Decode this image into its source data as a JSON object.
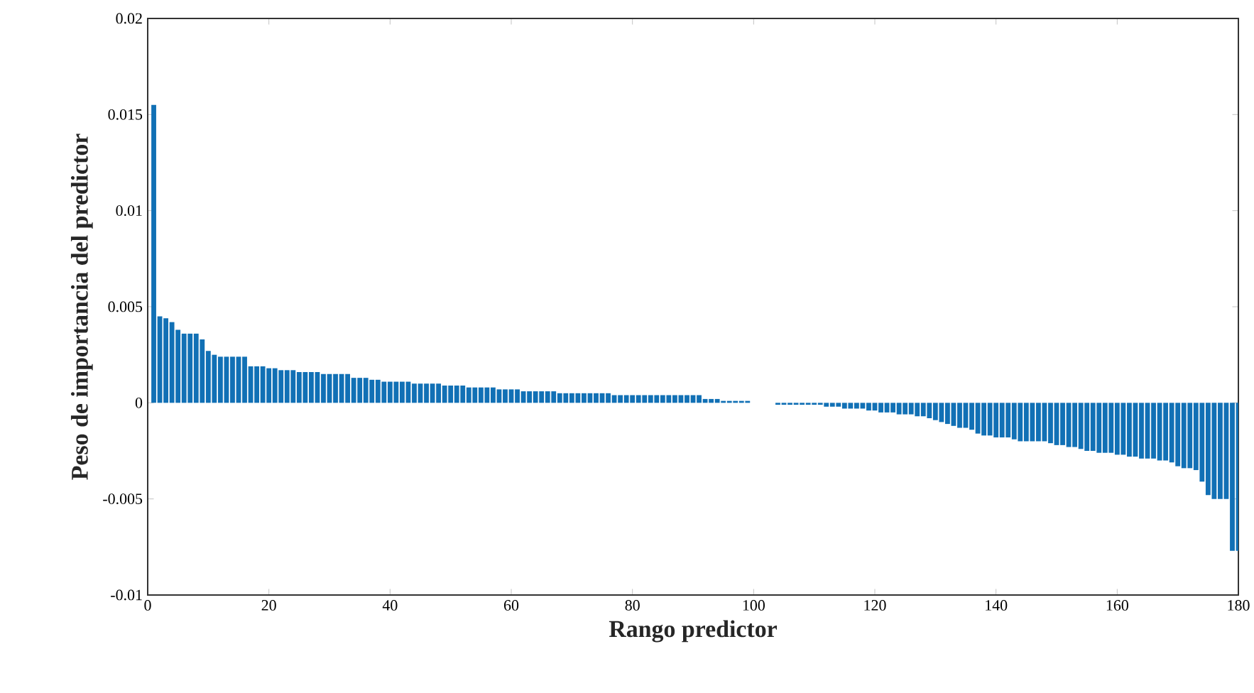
{
  "chart_data": {
    "type": "bar",
    "xlabel": "Rango predictor",
    "ylabel": "Peso de importancia del predictor",
    "color": "#1170b5",
    "x": [
      1,
      2,
      3,
      4,
      5,
      6,
      7,
      8,
      9,
      10,
      11,
      12,
      13,
      14,
      15,
      16,
      17,
      18,
      19,
      20,
      21,
      22,
      23,
      24,
      25,
      26,
      27,
      28,
      29,
      30,
      31,
      32,
      33,
      34,
      35,
      36,
      37,
      38,
      39,
      40,
      41,
      42,
      43,
      44,
      45,
      46,
      47,
      48,
      49,
      50,
      51,
      52,
      53,
      54,
      55,
      56,
      57,
      58,
      59,
      60,
      61,
      62,
      63,
      64,
      65,
      66,
      67,
      68,
      69,
      70,
      71,
      72,
      73,
      74,
      75,
      76,
      77,
      78,
      79,
      80,
      81,
      82,
      83,
      84,
      85,
      86,
      87,
      88,
      89,
      90,
      91,
      92,
      93,
      94,
      95,
      96,
      97,
      98,
      99,
      100,
      101,
      102,
      103,
      104,
      105,
      106,
      107,
      108,
      109,
      110,
      111,
      112,
      113,
      114,
      115,
      116,
      117,
      118,
      119,
      120,
      121,
      122,
      123,
      124,
      125,
      126,
      127,
      128,
      129,
      130,
      131,
      132,
      133,
      134,
      135,
      136,
      137,
      138,
      139,
      140,
      141,
      142,
      143,
      144,
      145,
      146,
      147,
      148,
      149,
      150,
      151,
      152,
      153,
      154,
      155,
      156,
      157,
      158,
      159,
      160,
      161,
      162,
      163,
      164,
      165,
      166,
      167,
      168,
      169,
      170,
      171,
      172,
      173,
      174,
      175,
      176,
      177,
      178,
      179,
      180
    ],
    "values": [
      0.0155,
      0.0045,
      0.0044,
      0.0042,
      0.0038,
      0.0036,
      0.0036,
      0.0036,
      0.0033,
      0.0027,
      0.0025,
      0.0024,
      0.0024,
      0.0024,
      0.0024,
      0.0024,
      0.0019,
      0.0019,
      0.0019,
      0.0018,
      0.0018,
      0.0017,
      0.0017,
      0.0017,
      0.0016,
      0.0016,
      0.0016,
      0.0016,
      0.0015,
      0.0015,
      0.0015,
      0.0015,
      0.0015,
      0.0013,
      0.0013,
      0.0013,
      0.0012,
      0.0012,
      0.0011,
      0.0011,
      0.0011,
      0.0011,
      0.0011,
      0.001,
      0.001,
      0.001,
      0.001,
      0.001,
      0.0009,
      0.0009,
      0.0009,
      0.0009,
      0.0008,
      0.0008,
      0.0008,
      0.0008,
      0.0008,
      0.0007,
      0.0007,
      0.0007,
      0.0007,
      0.0006,
      0.0006,
      0.0006,
      0.0006,
      0.0006,
      0.0006,
      0.0005,
      0.0005,
      0.0005,
      0.0005,
      0.0005,
      0.0005,
      0.0005,
      0.0005,
      0.0005,
      0.0004,
      0.0004,
      0.0004,
      0.0004,
      0.0004,
      0.0004,
      0.0004,
      0.0004,
      0.0004,
      0.0004,
      0.0004,
      0.0004,
      0.0004,
      0.0004,
      0.0004,
      0.0002,
      0.0002,
      0.0002,
      0.0001,
      0.0001,
      0.0001,
      0.0001,
      0.0001,
      0,
      0,
      0,
      0,
      -0.0001,
      -0.0001,
      -0.0001,
      -0.0001,
      -0.0001,
      -0.0001,
      -0.0001,
      -0.0001,
      -0.0002,
      -0.0002,
      -0.0002,
      -0.0003,
      -0.0003,
      -0.0003,
      -0.0003,
      -0.0004,
      -0.0004,
      -0.0005,
      -0.0005,
      -0.0005,
      -0.0006,
      -0.0006,
      -0.0006,
      -0.0007,
      -0.0007,
      -0.0008,
      -0.0009,
      -0.001,
      -0.0011,
      -0.0012,
      -0.0013,
      -0.0013,
      -0.0014,
      -0.0016,
      -0.0017,
      -0.0017,
      -0.0018,
      -0.0018,
      -0.0018,
      -0.0019,
      -0.002,
      -0.002,
      -0.002,
      -0.002,
      -0.002,
      -0.0021,
      -0.0022,
      -0.0022,
      -0.0023,
      -0.0023,
      -0.0024,
      -0.0025,
      -0.0025,
      -0.0026,
      -0.0026,
      -0.0026,
      -0.0027,
      -0.0027,
      -0.0028,
      -0.0028,
      -0.0029,
      -0.0029,
      -0.0029,
      -0.003,
      -0.003,
      -0.0031,
      -0.0033,
      -0.0034,
      -0.0034,
      -0.0035,
      -0.0041,
      -0.0048,
      -0.005,
      -0.005,
      -0.005,
      -0.0077,
      -0.0077
    ],
    "xlim": [
      0,
      180
    ],
    "ylim": [
      -0.01,
      0.02
    ],
    "xticks": [
      0,
      20,
      40,
      60,
      80,
      100,
      120,
      140,
      160,
      180
    ],
    "yticks": [
      -0.01,
      -0.005,
      0,
      0.005,
      0.01,
      0.015,
      0.02
    ]
  }
}
